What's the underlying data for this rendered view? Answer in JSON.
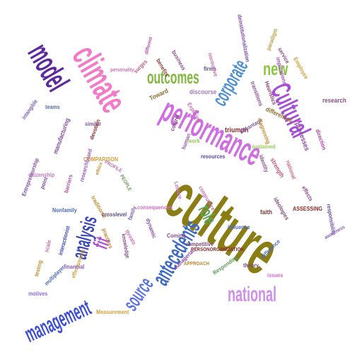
{
  "words": [
    {
      "text": "culture",
      "color": "#8a7d14"
    },
    {
      "text": "performance",
      "color": "#cf6ee0"
    },
    {
      "text": "climate",
      "color": "#f27ac6"
    },
    {
      "text": "model",
      "color": "#5c2a9d"
    },
    {
      "text": "Cultural",
      "color": "#a64ed8"
    },
    {
      "text": "outcomes",
      "color": "#7fb83c"
    },
    {
      "text": "corporate",
      "color": "#4b8fd1"
    },
    {
      "text": "new",
      "color": "#8cc63f"
    },
    {
      "text": "antecedents",
      "color": "#3b69c4"
    },
    {
      "text": "national",
      "color": "#cf8ee8"
    },
    {
      "text": "management",
      "color": "#3d4fd4"
    },
    {
      "text": "analysis",
      "color": "#3a47b8"
    },
    {
      "text": "source",
      "color": "#5b74e0"
    },
    {
      "text": "fit",
      "color": "#b44ed6"
    },
    {
      "text": "role",
      "color": "#5aa85a"
    },
    {
      "text": "research",
      "color": "#8a4f8a"
    },
    {
      "text": "triumph",
      "color": "#8a2d2d"
    },
    {
      "text": "faith",
      "color": "#7b3d3d"
    },
    {
      "text": "Toward",
      "color": "#8a6d2d"
    },
    {
      "text": "firms",
      "color": "#5a4a7a"
    },
    {
      "text": "discourse",
      "color": "#a07ab8"
    },
    {
      "text": "differences",
      "color": "#8a6d2d"
    },
    {
      "text": "advantage",
      "color": "#7b5c9d"
    },
    {
      "text": "sustained",
      "color": "#9ac85a"
    },
    {
      "text": "processes",
      "color": "#8a4aa8"
    },
    {
      "text": "identity",
      "color": "#8a4f8a"
    },
    {
      "text": "strength",
      "color": "#c0567a"
    },
    {
      "text": "national",
      "color": "#c76a8a"
    },
    {
      "text": "ideologies",
      "color": "#7a4a7a"
    },
    {
      "text": "effects",
      "color": "#8a4f8a"
    },
    {
      "text": "ASSESSING",
      "color": "#8a2d2d"
    },
    {
      "text": "responsibility",
      "color": "#6a4a9a"
    },
    {
      "text": "awareness",
      "color": "#8a5ab8"
    },
    {
      "text": "influence",
      "color": "#4a6ab8"
    },
    {
      "text": "theory",
      "color": "#7a4a7a"
    },
    {
      "text": "difference",
      "color": "#4a6ab8"
    },
    {
      "text": "issues",
      "color": "#d070c0"
    },
    {
      "text": "Responding",
      "color": "#5a9a5a"
    },
    {
      "text": "PERSONORGANIZATION",
      "color": "#8a2d2d"
    },
    {
      "text": "competitive",
      "color": "#7a4a7a"
    },
    {
      "text": "Coming",
      "color": "#8a4f8a"
    },
    {
      "text": "managerial",
      "color": "#8a4aa8"
    },
    {
      "text": "multiplayer",
      "color": "#4a6ab8"
    },
    {
      "text": "Measurement",
      "color": "#d0a040"
    },
    {
      "text": "motives",
      "color": "#8a6ad8"
    },
    {
      "text": "citizenship",
      "color": "#c07ab8"
    },
    {
      "text": "Entrepreneurship",
      "color": "#7a4a9a"
    },
    {
      "text": "teams",
      "color": "#5a6a9a"
    },
    {
      "text": "intangible",
      "color": "#7a5ab8"
    },
    {
      "text": "personality",
      "color": "#d070c0"
    },
    {
      "text": "different",
      "color": "#b050a0"
    },
    {
      "text": "surges",
      "color": "#c0607a"
    },
    {
      "text": "benefits",
      "color": "#8a3d3d"
    },
    {
      "text": "business",
      "color": "#8a4f8a"
    },
    {
      "text": "normative",
      "color": "#c070b0"
    },
    {
      "text": "deinstitutionalization",
      "color": "#7a4aa8"
    },
    {
      "text": "paradigm",
      "color": "#b8a040"
    },
    {
      "text": "service",
      "color": "#8a4f8a"
    },
    {
      "text": "Employee",
      "color": "#d0a040"
    },
    {
      "text": "implications",
      "color": "#a050c0"
    },
    {
      "text": "Heuristics",
      "color": "#8a3d6a"
    },
    {
      "text": "transitions",
      "color": "#8a4f8a"
    },
    {
      "text": "diagnosing",
      "color": "#c08a30"
    },
    {
      "text": "direction",
      "color": "#b040a0"
    },
    {
      "text": "control",
      "color": "#7a4a7a"
    },
    {
      "text": "resources",
      "color": "#5a4aa8"
    },
    {
      "text": "human",
      "color": "#8a5ab8"
    },
    {
      "text": "work",
      "color": "#9ac85a"
    },
    {
      "text": "Exploring",
      "color": "#c070b0"
    },
    {
      "text": "similar",
      "color": "#7a5a9a"
    },
    {
      "text": "devotion",
      "color": "#8a2d2d"
    },
    {
      "text": "COMPARISON",
      "color": "#d0a040"
    },
    {
      "text": "PROFILE",
      "color": "#c070b0"
    },
    {
      "text": "ethics",
      "color": "#c08a30"
    },
    {
      "text": "PEOPLE",
      "color": "#6a9a5a"
    },
    {
      "text": "manufacturing",
      "color": "#7a4a9a"
    },
    {
      "text": "researchbased",
      "color": "#9a5ab8"
    },
    {
      "text": "barriers",
      "color": "#b050a0"
    },
    {
      "text": "point",
      "color": "#7a4a9a"
    },
    {
      "text": "traditional",
      "color": "#c08a30"
    },
    {
      "text": "crosslevel",
      "color": "#5a4a7a"
    },
    {
      "text": "consequences",
      "color": "#d070c0"
    },
    {
      "text": "family",
      "color": "#7a5ab8"
    },
    {
      "text": "practices",
      "color": "#c08a30"
    },
    {
      "text": "threats",
      "color": "#d070c0"
    },
    {
      "text": "knowledge",
      "color": "#8a4f8a"
    },
    {
      "text": "Nonfamily",
      "color": "#4a6ab8"
    },
    {
      "text": "interactionist",
      "color": "#3a4ab8"
    },
    {
      "text": "scale",
      "color": "#c070b0"
    },
    {
      "text": "effectiveness",
      "color": "#d0a040"
    },
    {
      "text": "financial",
      "color": "#8a5ab8"
    },
    {
      "text": "testing",
      "color": "#c08a30"
    },
    {
      "text": "dynamic",
      "color": "#8a4aa8"
    },
    {
      "text": "congruence",
      "color": "#c070b0"
    },
    {
      "text": "APPROACH",
      "color": "#c08a30"
    },
    {
      "text": "Leisure",
      "color": "#d070c0"
    },
    {
      "text": "ICTs",
      "color": "#c070b0"
    }
  ]
}
